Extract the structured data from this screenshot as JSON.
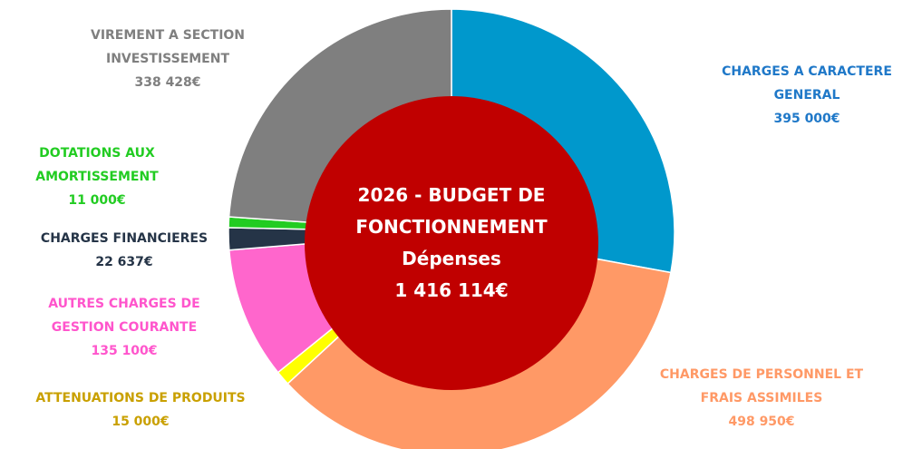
{
  "chart_data": {
    "type": "donut",
    "title": "2026 - BUDGET DE FONCTIONNEMENT",
    "subtitle": "Dépenses",
    "total_label": "1 416 114€",
    "categories": [
      "CHARGES A CARACTERE GENERAL",
      "CHARGES DE PERSONNEL ET FRAIS ASSIMILES",
      "ATTENUATIONS DE PRODUITS",
      "AUTRES CHARGES DE GESTION COURANTE",
      "CHARGES FINANCIERES",
      "DOTATIONS AUX AMORTISSEMENT",
      "VIREMENT A SECTION INVESTISSEMENT"
    ],
    "values": [
      395000,
      498950,
      15000,
      135100,
      22637,
      11000,
      338428
    ],
    "value_labels": [
      "395 000€",
      "498 950€",
      "15 000€",
      "135 100€",
      "22 637€",
      "11 000€",
      "338 428€"
    ],
    "colors": [
      "#0098cc",
      "#ff9966",
      "#ffff00",
      "#ff66cc",
      "#253447",
      "#22cc22",
      "#7f7f7f"
    ],
    "label_colors": [
      "#1f78c8",
      "#ff9966",
      "#c9a000",
      "#ff55cc",
      "#253447",
      "#22cc22",
      "#7f7f7f"
    ],
    "center_color": "#c00000"
  }
}
